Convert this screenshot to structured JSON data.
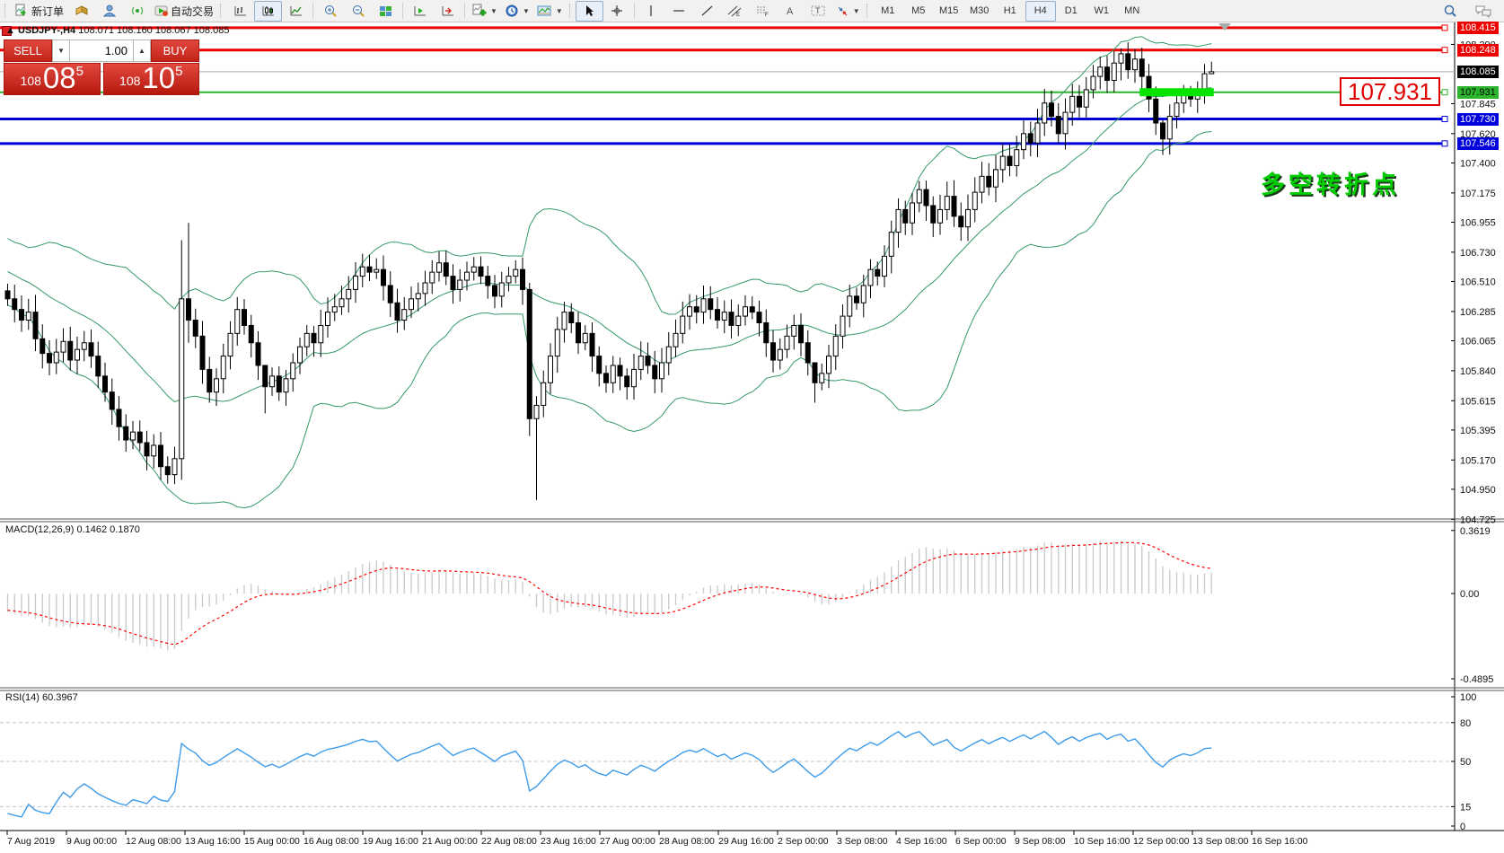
{
  "toolbar": {
    "new_order_label": "新订单",
    "autotrading_label": "自动交易",
    "timeframes": [
      "M1",
      "M5",
      "M15",
      "M30",
      "H1",
      "H4",
      "D1",
      "W1",
      "MN"
    ],
    "active_timeframe": "H4"
  },
  "chart_title": {
    "collapse_arrow": "▲",
    "symbol": "USDJPY-,H4",
    "ohlc_text": "108.071 108.160 108.067 108.085"
  },
  "one_click": {
    "sell_label": "SELL",
    "buy_label": "BUY",
    "volume": "1.00",
    "spin_down": "▼",
    "spin_up": "▲",
    "sell_price_prefix": "108",
    "sell_price_big": "08",
    "sell_price_sup": "5",
    "buy_price_prefix": "108",
    "buy_price_big": "10",
    "buy_price_sup": "5"
  },
  "annotations": {
    "big_price_label": "107.931",
    "cn_note": "多空转折点"
  },
  "macd_panel": {
    "label": "MACD(12,26,9) 0.1462 0.1870",
    "ticks": [
      0.3619,
      0.0,
      -0.4895
    ]
  },
  "rsi_panel": {
    "label": "RSI(14) 60.3967",
    "ticks": [
      100,
      80,
      50,
      15,
      0
    ],
    "levels": [
      80,
      50,
      15
    ]
  },
  "chart_data": {
    "type": "candlestick",
    "symbol": "USDJPY",
    "timeframe": "H4",
    "current_bar": {
      "open": 108.071,
      "high": 108.16,
      "low": 108.067,
      "close": 108.085
    },
    "current_price": 108.085,
    "price_axis_ticks": [
      108.29,
      107.845,
      107.62,
      107.4,
      107.175,
      106.955,
      106.73,
      106.51,
      106.285,
      106.065,
      105.84,
      105.615,
      105.395,
      105.17,
      104.95,
      104.725
    ],
    "h_lines": [
      {
        "price": 108.415,
        "color": "#ee0000",
        "width": 3,
        "label": "108.415",
        "text": "#fff"
      },
      {
        "price": 108.248,
        "color": "#ee0000",
        "width": 3,
        "label": "108.248",
        "text": "#fff"
      },
      {
        "price": 107.931,
        "color": "#2db52d",
        "width": 2,
        "label": "107.931",
        "text": "#000"
      },
      {
        "price": 107.73,
        "color": "#0000dd",
        "width": 3,
        "label": "107.730",
        "text": "#fff"
      },
      {
        "price": 107.546,
        "color": "#0000dd",
        "width": 3,
        "label": "107.546",
        "text": "#fff"
      }
    ],
    "zone": {
      "price": 107.931,
      "from_bar": 163,
      "to_bar": 173,
      "color": "#00e400",
      "thickness": 9
    },
    "time_labels": [
      "7 Aug 2019",
      "9 Aug 00:00",
      "12 Aug 08:00",
      "13 Aug 16:00",
      "15 Aug 00:00",
      "16 Aug 08:00",
      "19 Aug 16:00",
      "21 Aug 00:00",
      "22 Aug 08:00",
      "23 Aug 16:00",
      "27 Aug 00:00",
      "28 Aug 08:00",
      "29 Aug 16:00",
      "2 Sep 00:00",
      "3 Sep 08:00",
      "4 Sep 16:00",
      "6 Sep 00:00",
      "9 Sep 08:00",
      "10 Sep 16:00",
      "12 Sep 00:00",
      "13 Sep 08:00",
      "16 Sep 16:00"
    ],
    "warmup_closes": [
      106.9,
      106.85,
      106.8,
      106.76,
      106.72,
      106.7,
      106.66,
      106.62,
      106.6,
      106.58,
      106.56,
      106.55,
      106.52,
      106.5,
      106.52,
      106.48,
      106.5,
      106.46,
      106.48,
      106.44
    ],
    "closes": [
      106.38,
      106.3,
      106.22,
      106.28,
      106.08,
      105.97,
      105.9,
      105.98,
      106.06,
      105.92,
      106.0,
      106.05,
      105.95,
      105.8,
      105.68,
      105.55,
      105.42,
      105.32,
      105.38,
      105.3,
      105.2,
      105.28,
      105.12,
      105.06,
      105.18,
      106.38,
      106.22,
      106.1,
      105.85,
      105.68,
      105.78,
      105.95,
      106.12,
      106.3,
      106.18,
      106.05,
      105.88,
      105.72,
      105.8,
      105.68,
      105.78,
      105.9,
      106.02,
      106.12,
      106.05,
      106.18,
      106.28,
      106.32,
      106.38,
      106.45,
      106.55,
      106.62,
      106.58,
      106.6,
      106.48,
      106.35,
      106.22,
      106.3,
      106.38,
      106.42,
      106.5,
      106.58,
      106.65,
      106.55,
      106.45,
      106.52,
      106.58,
      106.62,
      106.55,
      106.48,
      106.4,
      106.5,
      106.55,
      106.6,
      106.45,
      105.48,
      105.58,
      105.75,
      105.95,
      106.15,
      106.28,
      106.2,
      106.05,
      106.12,
      105.95,
      105.82,
      105.75,
      105.88,
      105.8,
      105.72,
      105.85,
      105.95,
      105.88,
      105.78,
      105.9,
      106.02,
      106.12,
      106.25,
      106.32,
      106.28,
      106.38,
      106.3,
      106.22,
      106.28,
      106.18,
      106.25,
      106.32,
      106.28,
      106.2,
      106.05,
      105.92,
      106.0,
      106.1,
      106.18,
      106.05,
      105.9,
      105.75,
      105.82,
      105.95,
      106.1,
      106.25,
      106.4,
      106.35,
      106.48,
      106.6,
      106.55,
      106.7,
      106.88,
      107.05,
      106.95,
      107.1,
      107.2,
      107.08,
      106.95,
      107.05,
      107.15,
      107.0,
      106.92,
      107.05,
      107.18,
      107.3,
      107.22,
      107.35,
      107.45,
      107.38,
      107.5,
      107.62,
      107.55,
      107.7,
      107.85,
      107.75,
      107.62,
      107.78,
      107.9,
      107.82,
      107.95,
      108.05,
      108.12,
      108.02,
      108.15,
      108.22,
      108.1,
      108.18,
      108.05,
      107.88,
      107.7,
      107.58,
      107.75,
      107.85,
      107.92,
      107.88,
      107.95,
      108.07,
      108.085
    ],
    "wick_overrides": {
      "25": [
        106.82,
        105.02
      ],
      "26": [
        106.95,
        106.05
      ],
      "37": [
        105.8,
        105.52
      ],
      "75": [
        106.5,
        105.35
      ],
      "76": [
        105.65,
        104.87
      ],
      "116": [
        105.9,
        105.6
      ],
      "160": [
        108.26,
        108.02
      ],
      "166": [
        107.72,
        107.46
      ],
      "173": [
        108.16,
        108.067
      ]
    },
    "indicators": [
      {
        "name": "Bollinger Bands",
        "period": 20,
        "deviation": 2,
        "color": "#339966"
      },
      {
        "name": "MACD",
        "fast": 12,
        "slow": 26,
        "signal": 9,
        "values": [
          0.1462,
          0.187
        ]
      },
      {
        "name": "RSI",
        "period": 14,
        "value": 60.3967
      }
    ]
  },
  "colors": {
    "bull": "#ffffff",
    "bear": "#000000",
    "outline": "#000000",
    "bollinger": "#339966",
    "macd_hist": "#c8c8c8",
    "macd_signal": "#ff0000",
    "rsi_line": "#3d9be9",
    "grid_dash": "#c4c4c4",
    "current_line": "#ababab",
    "current_badge": "#000000",
    "frame": "#000000"
  }
}
